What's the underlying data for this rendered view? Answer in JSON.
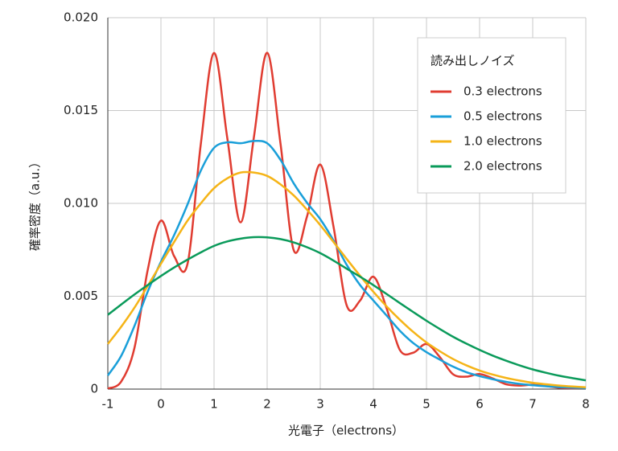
{
  "chart_data": {
    "type": "line",
    "xlabel": "光電子（electrons）",
    "ylabel": "確率密度（a.u.）",
    "legend_title": "読み出しノイズ",
    "legend": "upper right",
    "grid": true,
    "xlim": [
      -1,
      8
    ],
    "xticks": [
      -1,
      0,
      1,
      2,
      3,
      4,
      5,
      6,
      7,
      8
    ],
    "ylim": [
      0,
      0.02
    ],
    "yticks": [
      0,
      0.005,
      {
        "value": 0.01,
        "label": "0.010"
      },
      0.015,
      {
        "value": 0.02,
        "label": "0.020"
      }
    ],
    "x": [
      -1,
      -0.75,
      -0.5,
      -0.25,
      0,
      0.25,
      0.5,
      0.75,
      1,
      1.25,
      1.5,
      1.75,
      2,
      2.25,
      2.5,
      2.75,
      3,
      3.25,
      3.5,
      3.75,
      4,
      4.25,
      4.5,
      4.75,
      5,
      5.25,
      5.5,
      5.75,
      6,
      6.25,
      6.5,
      6.75,
      7,
      7.25,
      7.5,
      7.75,
      8
    ],
    "series": [
      {
        "name": "0.3 electrons",
        "color": "#e03c31",
        "values": [
          3e-05,
          0.0004,
          0.0022,
          0.0064,
          0.00907,
          0.00715,
          0.00674,
          0.01318,
          0.0181,
          0.01351,
          0.00898,
          0.01356,
          0.01811,
          0.01325,
          0.00748,
          0.00929,
          0.01209,
          0.00874,
          0.00449,
          0.00477,
          0.00605,
          0.00434,
          0.0021,
          0.00196,
          0.00243,
          0.00173,
          0.0008,
          0.00067,
          0.00081,
          0.00057,
          0.00026,
          0.00019,
          0.00023,
          0.00016,
          7e-05,
          5e-05,
          6e-05
        ]
      },
      {
        "name": "0.5 electrons",
        "color": "#1a9fd9",
        "values": [
          0.00073,
          0.00178,
          0.00339,
          0.00524,
          0.00686,
          0.0083,
          0.00994,
          0.01176,
          0.01299,
          0.01329,
          0.01324,
          0.01336,
          0.01324,
          0.01235,
          0.01108,
          0.01004,
          0.00915,
          0.008,
          0.00668,
          0.0056,
          0.00477,
          0.00396,
          0.00314,
          0.00248,
          0.00199,
          0.00159,
          0.00121,
          0.00091,
          0.0007,
          0.00053,
          0.00039,
          0.00028,
          0.00021,
          0.00015,
          0.00011,
          8e-05,
          6e-05
        ]
      },
      {
        "name": "1.0 electrons",
        "color": "#f5b417",
        "values": [
          0.00243,
          0.00335,
          0.00438,
          0.00555,
          0.00675,
          0.00793,
          0.00907,
          0.01,
          0.01082,
          0.01135,
          0.01166,
          0.01166,
          0.01148,
          0.01103,
          0.01043,
          0.00966,
          0.00883,
          0.00792,
          0.007,
          0.0061,
          0.00524,
          0.00445,
          0.00373,
          0.00308,
          0.00251,
          0.00204,
          0.00162,
          0.00128,
          0.001,
          0.00078,
          0.0006,
          0.00046,
          0.00034,
          0.00026,
          0.00019,
          0.00014,
          0.0001
        ]
      },
      {
        "name": "2.0 electrons",
        "color": "#0a9a5a",
        "values": [
          0.004,
          0.00455,
          0.00509,
          0.0056,
          0.00609,
          0.00655,
          0.00697,
          0.00736,
          0.00771,
          0.00795,
          0.0081,
          0.00818,
          0.00817,
          0.00808,
          0.0079,
          0.00764,
          0.00732,
          0.00692,
          0.00648,
          0.00605,
          0.0056,
          0.00512,
          0.00463,
          0.00415,
          0.00368,
          0.00324,
          0.00282,
          0.00245,
          0.00211,
          0.0018,
          0.00153,
          0.00128,
          0.00106,
          0.00088,
          0.00072,
          0.00059,
          0.00047
        ]
      }
    ]
  }
}
